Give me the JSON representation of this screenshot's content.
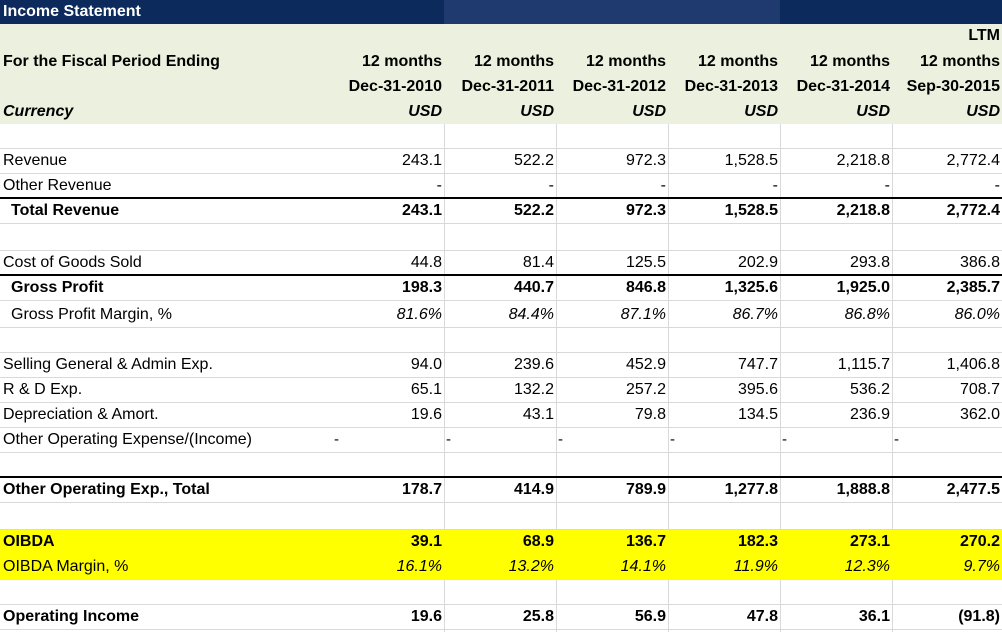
{
  "title": "Income Statement",
  "header": {
    "period_label": "For the Fiscal Period Ending",
    "currency_label": "Currency",
    "columns": [
      {
        "top": "",
        "period": "12 months",
        "date": "Dec-31-2010",
        "currency": "USD"
      },
      {
        "top": "",
        "period": "12 months",
        "date": "Dec-31-2011",
        "currency": "USD"
      },
      {
        "top": "",
        "period": "12 months",
        "date": "Dec-31-2012",
        "currency": "USD"
      },
      {
        "top": "",
        "period": "12 months",
        "date": "Dec-31-2013",
        "currency": "USD"
      },
      {
        "top": "",
        "period": "12 months",
        "date": "Dec-31-2014",
        "currency": "USD"
      },
      {
        "top": "LTM",
        "period": "12 months",
        "date": "Sep-30-2015",
        "currency": "USD"
      }
    ]
  },
  "rows": {
    "revenue": {
      "label": "Revenue",
      "values": [
        "243.1",
        "522.2",
        "972.3",
        "1,528.5",
        "2,218.8",
        "2,772.4"
      ]
    },
    "other_revenue": {
      "label": "Other Revenue",
      "values": [
        "-",
        "-",
        "-",
        "-",
        "-",
        "-"
      ]
    },
    "total_revenue": {
      "label": "Total Revenue",
      "values": [
        "243.1",
        "522.2",
        "972.3",
        "1,528.5",
        "2,218.8",
        "2,772.4"
      ]
    },
    "cogs": {
      "label": "Cost of Goods Sold",
      "values": [
        "44.8",
        "81.4",
        "125.5",
        "202.9",
        "293.8",
        "386.8"
      ]
    },
    "gross_profit": {
      "label": "Gross Profit",
      "values": [
        "198.3",
        "440.7",
        "846.8",
        "1,325.6",
        "1,925.0",
        "2,385.7"
      ]
    },
    "gross_margin": {
      "label": "Gross Profit Margin, %",
      "values": [
        "81.6%",
        "84.4%",
        "87.1%",
        "86.7%",
        "86.8%",
        "86.0%"
      ]
    },
    "sga": {
      "label": "Selling General & Admin Exp.",
      "values": [
        "94.0",
        "239.6",
        "452.9",
        "747.7",
        "1,115.7",
        "1,406.8"
      ]
    },
    "rnd": {
      "label": "R & D Exp.",
      "values": [
        "65.1",
        "132.2",
        "257.2",
        "395.6",
        "536.2",
        "708.7"
      ]
    },
    "da": {
      "label": "Depreciation & Amort.",
      "values": [
        "19.6",
        "43.1",
        "79.8",
        "134.5",
        "236.9",
        "362.0"
      ]
    },
    "other_opex": {
      "label": "Other Operating Expense/(Income)",
      "values": [
        "-",
        "-",
        "-",
        "-",
        "-",
        "-"
      ]
    },
    "opex_total": {
      "label": "Other Operating Exp., Total",
      "values": [
        "178.7",
        "414.9",
        "789.9",
        "1,277.8",
        "1,888.8",
        "2,477.5"
      ]
    },
    "oibda": {
      "label": "OIBDA",
      "values": [
        "39.1",
        "68.9",
        "136.7",
        "182.3",
        "273.1",
        "270.2"
      ]
    },
    "oibda_margin": {
      "label": "OIBDA Margin, %",
      "values": [
        "16.1%",
        "13.2%",
        "14.1%",
        "11.9%",
        "12.3%",
        "9.7%"
      ]
    },
    "operating_income": {
      "label": "Operating Income",
      "values": [
        "19.6",
        "25.8",
        "56.9",
        "47.8",
        "36.1",
        "(91.8)"
      ]
    }
  },
  "colors": {
    "title_bar": "#0d2a5c",
    "header_bg": "#ebf1de",
    "highlight": "#ffff00"
  }
}
